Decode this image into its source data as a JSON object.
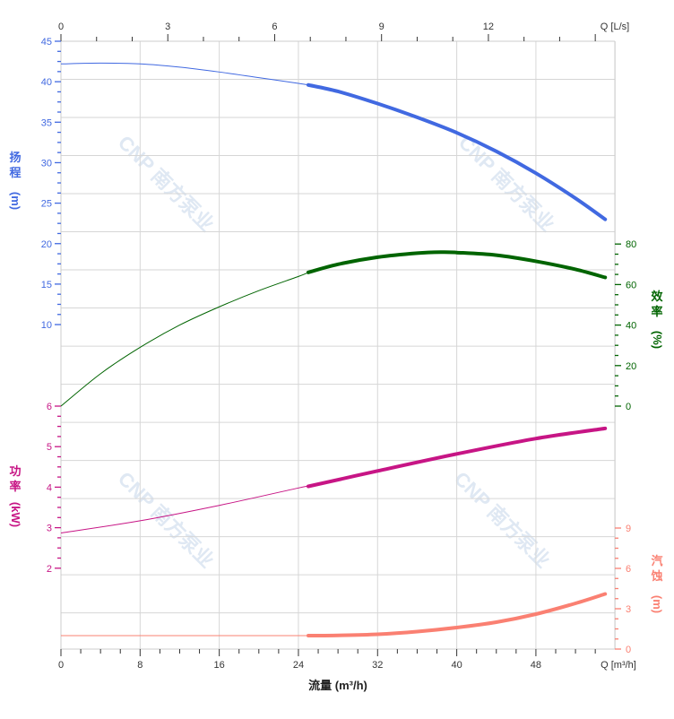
{
  "chart_data": {
    "type": "line",
    "x_axis": {
      "label": "流量 (m³/h)",
      "end_label": "Q [m³/h]",
      "range": [
        0,
        56
      ],
      "ticks": [
        0,
        8,
        16,
        24,
        32,
        40,
        48
      ]
    },
    "x2_axis": {
      "end_label": "Q [L/s]",
      "ticks": [
        0,
        3,
        6,
        9,
        12
      ]
    },
    "grid": true,
    "operating_range": [
      25,
      55
    ],
    "watermark": "CNP 南方泵业",
    "series": [
      {
        "name": "扬程",
        "unit": "(m)",
        "axis": "left-top",
        "color": "#4169e1",
        "ylim": [
          10,
          45
        ],
        "ticks": [
          10,
          15,
          20,
          25,
          30,
          35,
          40,
          45
        ],
        "x": [
          0,
          4,
          8,
          12,
          16,
          20,
          24,
          25,
          28,
          32,
          36,
          40,
          44,
          48,
          52,
          55
        ],
        "y": [
          42.2,
          42.3,
          42.2,
          41.8,
          41.2,
          40.5,
          39.8,
          39.6,
          38.8,
          37.3,
          35.6,
          33.7,
          31.4,
          28.7,
          25.6,
          23.0
        ]
      },
      {
        "name": "效率",
        "unit": "(%)",
        "axis": "right-top",
        "color": "#006400",
        "ylim": [
          0,
          80
        ],
        "ticks": [
          0,
          20,
          40,
          60,
          80
        ],
        "x": [
          0,
          4,
          8,
          12,
          16,
          20,
          24,
          25,
          28,
          32,
          36,
          38.5,
          40,
          44,
          48,
          52,
          55
        ],
        "y": [
          0,
          16,
          29,
          40,
          49,
          57,
          64,
          66,
          70,
          73.5,
          75.5,
          76,
          75.8,
          74.5,
          71.5,
          67.5,
          63.5
        ]
      },
      {
        "name": "功率",
        "unit": "(kW)",
        "axis": "left-bottom",
        "color": "#c71585",
        "ylim": [
          2,
          6
        ],
        "ticks": [
          2,
          3,
          4,
          5,
          6
        ],
        "x": [
          0,
          8,
          16,
          24,
          25,
          32,
          40,
          48,
          55
        ],
        "y": [
          2.87,
          3.17,
          3.55,
          3.98,
          4.02,
          4.4,
          4.82,
          5.2,
          5.45
        ]
      },
      {
        "name": "汽蚀",
        "unit": "(m)",
        "axis": "right-bottom",
        "color": "#fa8072",
        "ylim": [
          0,
          9
        ],
        "ticks": [
          0,
          3,
          6,
          9
        ],
        "x": [
          0,
          25,
          28,
          32,
          36,
          40,
          44,
          48,
          52,
          55
        ],
        "y": [
          1,
          1,
          1.02,
          1.1,
          1.3,
          1.6,
          2.0,
          2.6,
          3.4,
          4.1
        ]
      }
    ]
  }
}
